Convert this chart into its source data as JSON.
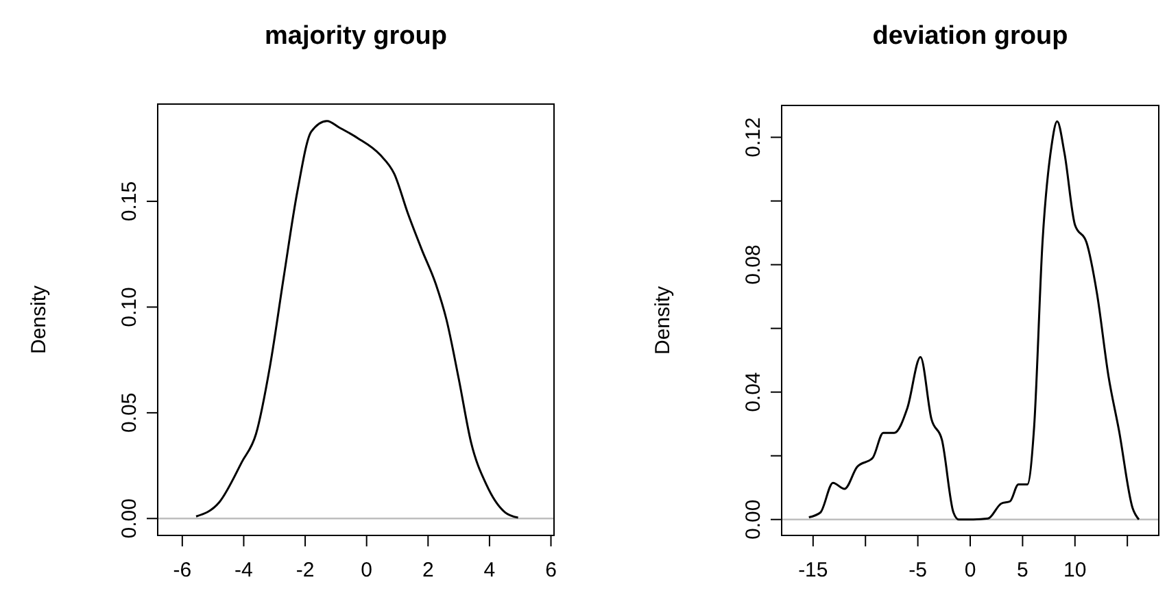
{
  "chart_data": [
    {
      "type": "line",
      "title": "majority group",
      "ylabel": "Density",
      "x": [
        -5.55,
        -4.8,
        -4.05,
        -3.6,
        -3.14,
        -2.7,
        -2.25,
        -1.8,
        -1.29,
        -0.9,
        -0.3,
        0.44,
        0.9,
        1.35,
        1.8,
        2.25,
        2.6,
        3.0,
        3.4,
        3.9,
        4.5,
        4.93
      ],
      "series": [
        {
          "color": "#000000",
          "values": [
            0.001,
            0.0076,
            0.027,
            0.04,
            0.0725,
            0.114,
            0.155,
            0.183,
            0.188,
            0.185,
            0.18,
            0.172,
            0.163,
            0.144,
            0.127,
            0.111,
            0.094,
            0.066,
            0.036,
            0.016,
            0.003,
            0.0004
          ]
        }
      ],
      "xlim": [
        -6.8,
        6.1
      ],
      "xticks": [
        -6,
        -4,
        -2,
        0,
        2,
        4,
        6
      ],
      "ylim": [
        -0.008,
        0.196
      ],
      "yticks": [
        {
          "value": 0,
          "label": "0.00"
        },
        0.05,
        {
          "value": 0.1,
          "label": "0.10"
        },
        0.15
      ],
      "ref_lines": [
        {
          "axis": "y",
          "value": 0,
          "color": "#bebebe"
        }
      ]
    },
    {
      "type": "line",
      "title": "deviation group",
      "ylabel": "Density",
      "x": [
        -15.4,
        -14.3,
        -13.1,
        -12.0,
        -10.8,
        -9.3,
        -8.3,
        -7.25,
        -6.0,
        -4.75,
        -3.7,
        -2.7,
        -1.6,
        -1.1,
        0.3,
        1.7,
        2.96,
        3.8,
        4.6,
        5.45,
        6.1,
        6.9,
        7.75,
        8.3,
        9.0,
        10.0,
        11.1,
        12.1,
        13.2,
        14.2,
        15.5,
        16.1
      ],
      "series": [
        {
          "color": "#000000",
          "values": [
            0.0007,
            0.0022,
            0.0115,
            0.0096,
            0.0165,
            0.0194,
            0.0272,
            0.0272,
            0.035,
            0.051,
            0.0315,
            0.025,
            0.0022,
            0,
            0,
            0.0003,
            0.005,
            0.0057,
            0.011,
            0.011,
            0.029,
            0.087,
            0.117,
            0.125,
            0.115,
            0.0925,
            0.087,
            0.071,
            0.045,
            0.028,
            0.0036,
            0
          ]
        }
      ],
      "xlim": [
        -18,
        18
      ],
      "xticks": [
        -15,
        {
          "value": -10,
          "label": null
        },
        -5,
        0,
        5,
        10,
        {
          "value": 15,
          "label": null
        }
      ],
      "ylim": [
        -0.005,
        0.13
      ],
      "yticks": [
        {
          "value": 0,
          "label": "0.00"
        },
        {
          "value": 0.02,
          "label": null
        },
        0.04,
        {
          "value": 0.06,
          "label": null
        },
        0.08,
        {
          "value": 0.1,
          "label": null
        },
        0.12
      ],
      "ref_lines": [
        {
          "axis": "y",
          "value": 0,
          "color": "#bebebe"
        }
      ]
    }
  ]
}
